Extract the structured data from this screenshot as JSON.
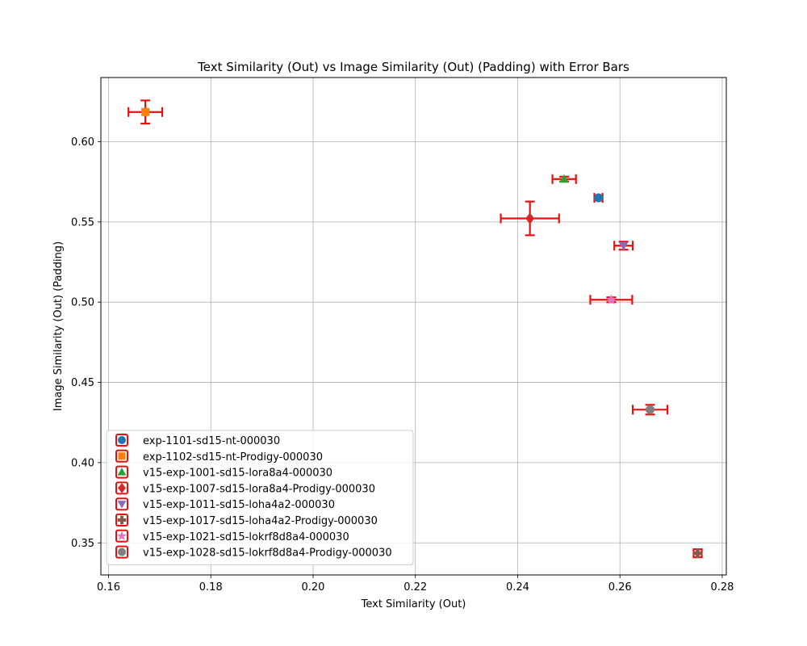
{
  "chart_data": {
    "type": "scatter",
    "title": "Text Similarity (Out) vs Image Similarity (Out) (Padding) with Error Bars",
    "xlabel": "Text Similarity (Out)",
    "ylabel": "Image Similarity (Out) (Padding)",
    "xlim": [
      0.1585,
      0.2808
    ],
    "ylim": [
      0.33,
      0.64
    ],
    "xticks": [
      0.16,
      0.18,
      0.2,
      0.22,
      0.24,
      0.26,
      0.28
    ],
    "xtick_labels": [
      "0.16",
      "0.18",
      "0.20",
      "0.22",
      "0.24",
      "0.26",
      "0.28"
    ],
    "yticks": [
      0.35,
      0.4,
      0.45,
      0.5,
      0.55,
      0.6
    ],
    "ytick_labels": [
      "0.35",
      "0.40",
      "0.45",
      "0.50",
      "0.55",
      "0.60"
    ],
    "grid": true,
    "legend_position": "lower-left",
    "errorbar_color": "#e8100f",
    "series": [
      {
        "name": "exp-1101-sd15-nt-000030",
        "marker": "circle",
        "color": "#1f77b4",
        "x": 0.2558,
        "y": 0.565,
        "xerr": 0.0008,
        "yerr": 0.0015
      },
      {
        "name": "exp-1102-sd15-nt-Prodigy-000030",
        "marker": "square",
        "color": "#ff7f0e",
        "x": 0.1672,
        "y": 0.6185,
        "xerr": 0.0033,
        "yerr": 0.0072
      },
      {
        "name": "v15-exp-1001-sd15-lora8a4-000030",
        "marker": "triangle-up",
        "color": "#2ca02c",
        "x": 0.2491,
        "y": 0.5767,
        "xerr": 0.0023,
        "yerr": 0.0015
      },
      {
        "name": "v15-exp-1007-sd15-lora8a4-Prodigy-000030",
        "marker": "diamond",
        "color": "#d62728",
        "x": 0.2424,
        "y": 0.5522,
        "xerr": 0.0057,
        "yerr": 0.0105
      },
      {
        "name": "v15-exp-1011-sd15-loha4a2-000030",
        "marker": "triangle-down",
        "color": "#9467bd",
        "x": 0.2607,
        "y": 0.5352,
        "xerr": 0.0018,
        "yerr": 0.0025
      },
      {
        "name": "v15-exp-1017-sd15-loha4a2-Prodigy-000030",
        "marker": "plus",
        "color": "#8c564b",
        "x": 0.2752,
        "y": 0.3435,
        "xerr": 0.0008,
        "yerr": 0.0025
      },
      {
        "name": "v15-exp-1021-sd15-lokrf8d8a4-000030",
        "marker": "star",
        "color": "#e377c2",
        "x": 0.2583,
        "y": 0.5015,
        "xerr": 0.0041,
        "yerr": 0.0015
      },
      {
        "name": "v15-exp-1028-sd15-lokrf8d8a4-Prodigy-000030",
        "marker": "octagon",
        "color": "#7f7f7f",
        "x": 0.2659,
        "y": 0.433,
        "xerr": 0.0034,
        "yerr": 0.003
      }
    ]
  }
}
